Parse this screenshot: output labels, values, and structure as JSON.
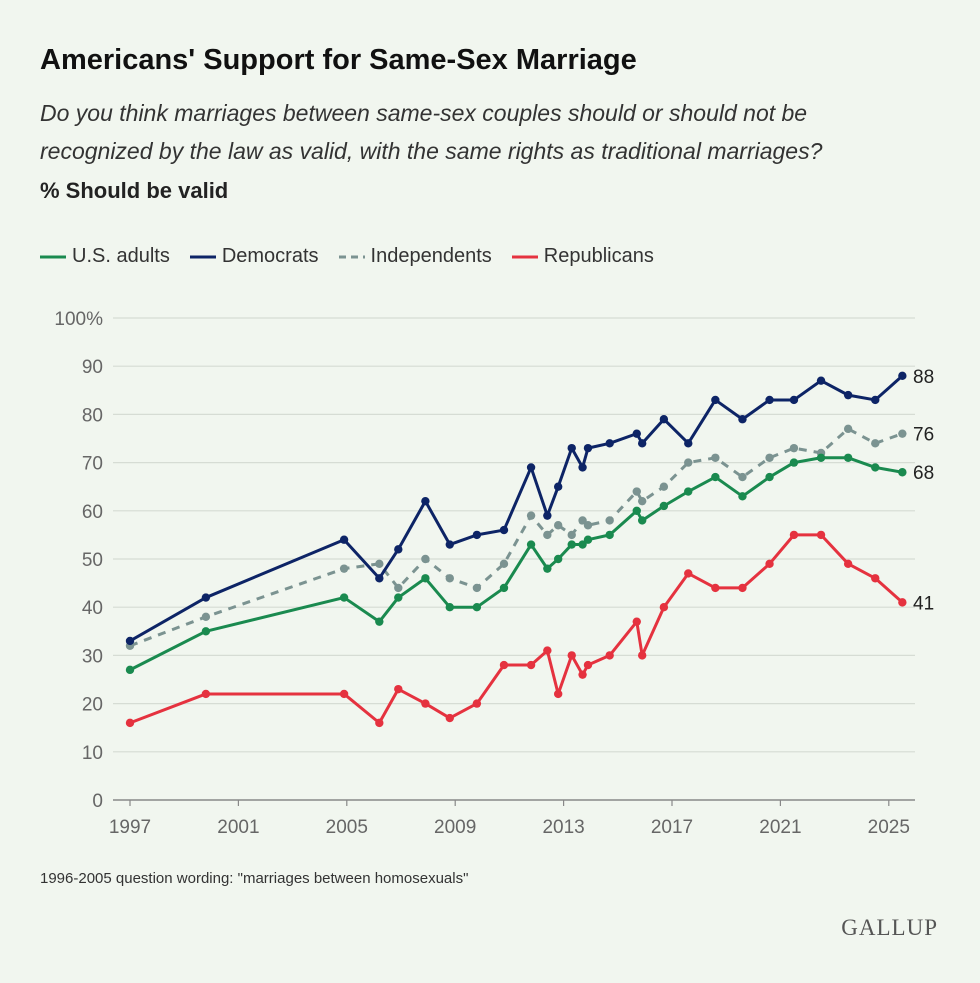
{
  "header": {
    "title": "Americans' Support for Same-Sex Marriage",
    "subtitle_line1": "Do you think marriages between same-sex couples should or should not be",
    "subtitle_line2": "recognized by the law as valid, with the same rights as traditional marriages?",
    "unit": "% Should be valid"
  },
  "footnote": "1996-2005 question wording: \"marriages between homosexuals\"",
  "logo": "GALLUP",
  "chart_data": {
    "type": "line",
    "title": "Americans' Support for Same-Sex Marriage",
    "xlabel": "",
    "ylabel": "",
    "xlim": [
      1996.4,
      2025.9
    ],
    "ylim": [
      0,
      100
    ],
    "grid": true,
    "legend_position": "top-left",
    "x_ticks": [
      "1997",
      "2001",
      "2005",
      "2009",
      "2013",
      "2017",
      "2021",
      "2025"
    ],
    "y_ticks": [
      "0",
      "10",
      "20",
      "30",
      "40",
      "50",
      "60",
      "70",
      "80",
      "90",
      "100%"
    ],
    "x": [
      1997.0,
      1999.8,
      2004.9,
      2006.2,
      2006.9,
      2007.9,
      2008.8,
      2009.8,
      2010.8,
      2011.8,
      2012.4,
      2012.8,
      2013.3,
      2013.7,
      2013.9,
      2014.7,
      2015.7,
      2015.9,
      2016.7,
      2017.6,
      2018.6,
      2019.6,
      2020.6,
      2021.5,
      2022.5,
      2023.5,
      2024.5,
      2025.5
    ],
    "series": [
      {
        "name": "U.S. adults",
        "color": "#1a8a4f",
        "dashed": false,
        "end_label": "68",
        "values": [
          27,
          35,
          42,
          37,
          42,
          46,
          40,
          40,
          44,
          53,
          48,
          50,
          53,
          53,
          54,
          55,
          60,
          58,
          61,
          64,
          67,
          63,
          67,
          70,
          71,
          71,
          69,
          68
        ]
      },
      {
        "name": "Democrats",
        "color": "#0d2466",
        "dashed": false,
        "end_label": "88",
        "values": [
          33,
          42,
          54,
          46,
          52,
          62,
          53,
          55,
          56,
          69,
          59,
          65,
          73,
          69,
          73,
          74,
          76,
          74,
          79,
          74,
          83,
          79,
          83,
          83,
          87,
          84,
          83,
          88
        ]
      },
      {
        "name": "Independents",
        "color": "#7b9391",
        "dashed": true,
        "end_label": "76",
        "values": [
          32,
          38,
          48,
          49,
          44,
          50,
          46,
          44,
          49,
          59,
          55,
          57,
          55,
          58,
          57,
          58,
          64,
          62,
          65,
          70,
          71,
          67,
          71,
          73,
          72,
          77,
          74,
          76
        ]
      },
      {
        "name": "Republicans",
        "color": "#e5323f",
        "dashed": false,
        "end_label": "41",
        "values": [
          16,
          22,
          22,
          16,
          23,
          20,
          17,
          20,
          28,
          28,
          31,
          22,
          30,
          26,
          28,
          30,
          37,
          30,
          40,
          47,
          44,
          44,
          49,
          55,
          55,
          49,
          46,
          41
        ]
      }
    ]
  }
}
